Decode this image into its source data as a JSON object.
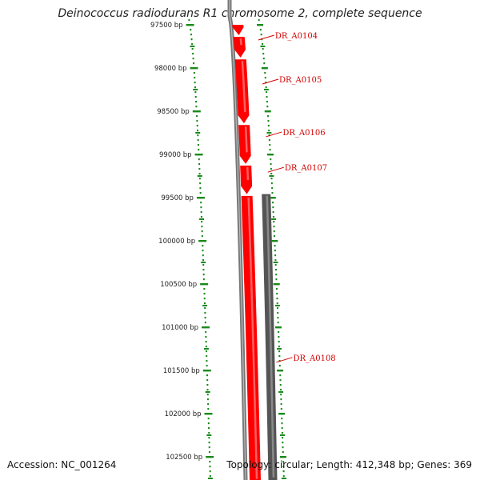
{
  "title": "Deinococcus radiodurans R1 chromosome 2, complete sequence",
  "footer": {
    "accession": "Accession: NC_001264",
    "summary": "Topology: circular; Length: 412,348 bp; Genes: 369"
  },
  "colors": {
    "forward_feature": "#ff0000",
    "backbone": "#777777",
    "reverse_feature": "#555555",
    "ruler": "#1a8a1a",
    "gene_label": "#d40000"
  },
  "ruler": {
    "unit": "bp",
    "ticks": [
      {
        "pos": 97500,
        "label": "97500 bp"
      },
      {
        "pos": 98000,
        "label": "98000 bp"
      },
      {
        "pos": 98500,
        "label": "98500 bp"
      },
      {
        "pos": 99000,
        "label": "99000 bp"
      },
      {
        "pos": 99500,
        "label": "99500 bp"
      },
      {
        "pos": 100000,
        "label": "100000 bp"
      },
      {
        "pos": 100500,
        "label": "100500 bp"
      },
      {
        "pos": 101000,
        "label": "101000 bp"
      },
      {
        "pos": 101500,
        "label": "101500 bp"
      },
      {
        "pos": 102000,
        "label": "102000 bp"
      },
      {
        "pos": 102500,
        "label": "102500 bp"
      }
    ]
  },
  "features": [
    {
      "name": "DR_A0104",
      "strand": "+",
      "start": 97500,
      "end": 97620
    },
    {
      "name": "DR_A0104",
      "strand": "+",
      "start": 97640,
      "end": 97880
    },
    {
      "name": "DR_A0105",
      "strand": "+",
      "start": 97900,
      "end": 98640
    },
    {
      "name": "DR_A0106",
      "strand": "+",
      "start": 98660,
      "end": 99110
    },
    {
      "name": "DR_A0107",
      "strand": "+",
      "start": 99130,
      "end": 99460
    },
    {
      "name": "DR_A0108",
      "strand": "+",
      "start": 99480,
      "end": 102800
    },
    {
      "name": "",
      "strand": "-",
      "start": 99460,
      "end": 102800
    }
  ],
  "gene_labels": [
    {
      "text": "DR_A0104",
      "pos": 97620
    },
    {
      "text": "DR_A0105",
      "pos": 98130
    },
    {
      "text": "DR_A0106",
      "pos": 98740
    },
    {
      "text": "DR_A0107",
      "pos": 99150
    },
    {
      "text": "DR_A0108",
      "pos": 101350
    }
  ]
}
